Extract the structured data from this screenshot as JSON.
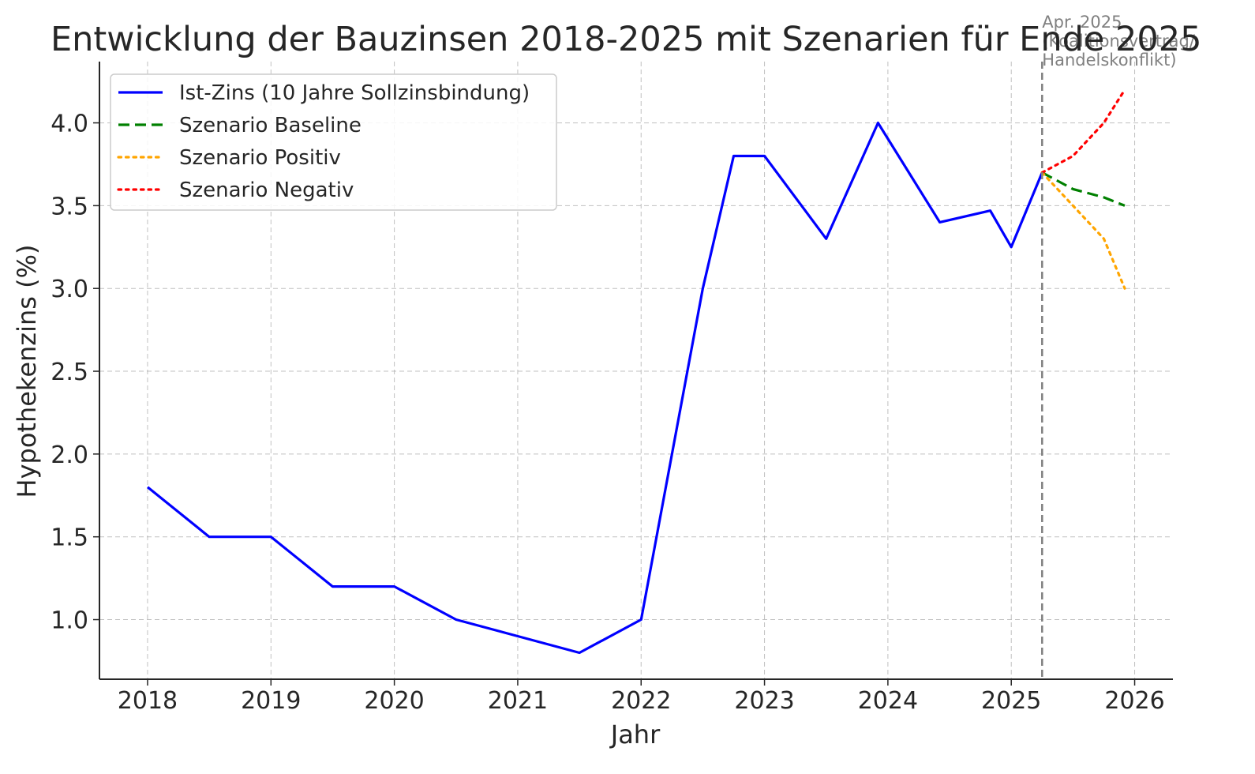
{
  "chart_data": {
    "type": "line",
    "title": "Entwicklung der Bauzinsen 2018-2025 mit Szenarien für Ende 2025",
    "xlabel": "Jahr",
    "ylabel": "Hypothekenzins (%)",
    "xlim": [
      2017.61,
      2026.31
    ],
    "ylim": [
      0.64,
      4.37
    ],
    "x_ticks": [
      2018,
      2019,
      2020,
      2021,
      2022,
      2023,
      2024,
      2025,
      2026
    ],
    "y_ticks": [
      1.0,
      1.5,
      2.0,
      2.5,
      3.0,
      3.5,
      4.0
    ],
    "y_tick_labels": [
      "1.0",
      "1.5",
      "2.0",
      "2.5",
      "3.0",
      "3.5",
      "4.0"
    ],
    "grid": true,
    "legend_position": "top-left",
    "series": [
      {
        "name": "Ist-Zins (10 Jahre Sollzinsbindung)",
        "style": "solid",
        "color": "#0000ff",
        "x": [
          2018.0,
          2018.5,
          2019.0,
          2019.5,
          2020.0,
          2020.5,
          2021.0,
          2021.5,
          2022.0,
          2022.5,
          2022.75,
          2023.0,
          2023.5,
          2023.92,
          2024.42,
          2024.83,
          2025.0,
          2025.25
        ],
        "y": [
          1.8,
          1.5,
          1.5,
          1.2,
          1.2,
          1.0,
          0.9,
          0.8,
          1.0,
          3.0,
          3.8,
          3.8,
          3.3,
          4.0,
          3.4,
          3.47,
          3.25,
          3.7
        ]
      },
      {
        "name": "Szenario Baseline",
        "style": "dashed",
        "color": "#008000",
        "x": [
          2025.25,
          2025.5,
          2025.75,
          2025.92
        ],
        "y": [
          3.7,
          3.6,
          3.55,
          3.5
        ]
      },
      {
        "name": "Szenario Positiv",
        "style": "dotted",
        "color": "#ffa500",
        "x": [
          2025.25,
          2025.5,
          2025.75,
          2025.92
        ],
        "y": [
          3.7,
          3.5,
          3.3,
          3.0
        ]
      },
      {
        "name": "Szenario Negativ",
        "style": "dotted",
        "color": "#ff0000",
        "x": [
          2025.25,
          2025.5,
          2025.75,
          2025.92
        ],
        "y": [
          3.7,
          3.8,
          4.0,
          4.2
        ]
      }
    ],
    "annotation": {
      "x": 2025.25,
      "lines": [
        "Apr. 2025",
        "(Koalitionsvertrag/",
        "Handelskonflikt)"
      ],
      "color": "#808080"
    }
  }
}
